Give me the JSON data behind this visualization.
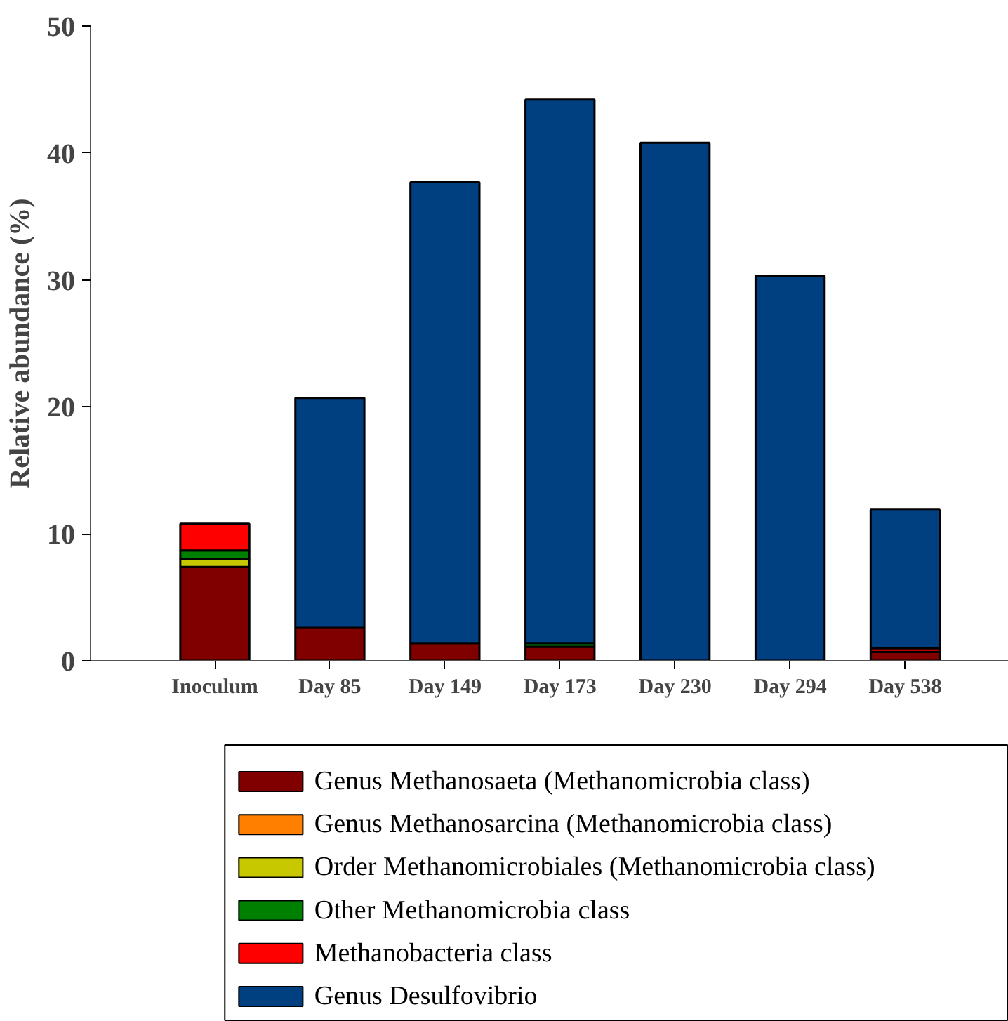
{
  "chart_data": {
    "type": "bar",
    "stacked": true,
    "ylabel": "Relative abundance (%)",
    "categories": [
      "Inoculum",
      "Day 85",
      "Day 149",
      "Day 173",
      "Day 230",
      "Day 294",
      "Day 538"
    ],
    "series": [
      {
        "name": "Genus Methanosaeta (Methanomicrobia class)",
        "color": "#800000",
        "values": [
          7.4,
          2.6,
          1.4,
          1.1,
          null,
          null,
          0.7
        ]
      },
      {
        "name": "Genus Methanosarcina (Methanomicrobia class)",
        "color": "#ff8000",
        "values": [
          null,
          null,
          null,
          null,
          null,
          null,
          null
        ]
      },
      {
        "name": "Order Methanomicrobiales (Methanomicrobia class)",
        "color": "#c8c800",
        "values": [
          0.6,
          null,
          null,
          null,
          null,
          null,
          null
        ]
      },
      {
        "name": "Other Methanomicrobia class",
        "color": "#008000",
        "values": [
          0.7,
          null,
          null,
          0.3,
          null,
          null,
          null
        ]
      },
      {
        "name": "Methanobacteria class",
        "color": "#ff0000",
        "values": [
          2.1,
          null,
          null,
          null,
          null,
          null,
          0.3
        ]
      },
      {
        "name": "Genus Desulfovibrio",
        "color": "#003f80",
        "values": [
          null,
          18.1,
          36.3,
          42.8,
          40.8,
          30.3,
          10.9
        ]
      }
    ],
    "ylim": [
      0,
      50
    ],
    "yticks": [
      0,
      10,
      20,
      30,
      40,
      50
    ],
    "grid": false,
    "legend": "bottom"
  }
}
